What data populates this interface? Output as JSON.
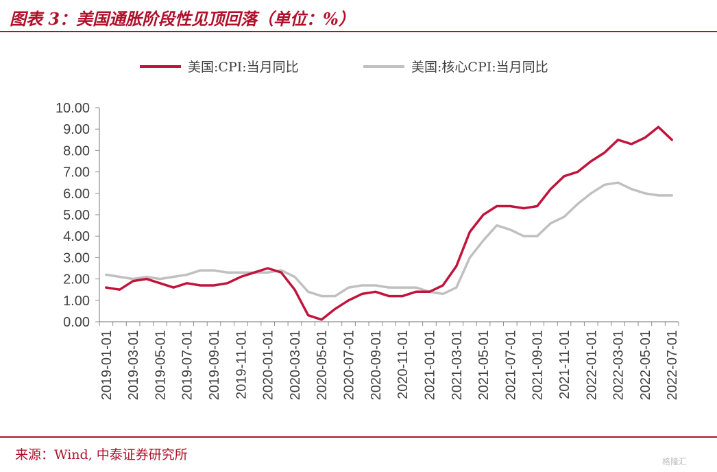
{
  "header": {
    "title": "图表 3：美国通胀阶段性见顶回落（单位：%）"
  },
  "footer": {
    "source": "来源：Wind, 中泰证券研究所",
    "watermark": "格隆汇"
  },
  "colors": {
    "brand": "#b0102a",
    "cpi": "#c0143c",
    "core": "#c0c0c0"
  },
  "chart_data": {
    "type": "line",
    "ylim": [
      0,
      10
    ],
    "yticks": [
      "0.00",
      "1.00",
      "2.00",
      "3.00",
      "4.00",
      "5.00",
      "6.00",
      "7.00",
      "8.00",
      "9.00",
      "10.00"
    ],
    "x": [
      "2019-01-01",
      "2019-02-01",
      "2019-03-01",
      "2019-04-01",
      "2019-05-01",
      "2019-06-01",
      "2019-07-01",
      "2019-08-01",
      "2019-09-01",
      "2019-10-01",
      "2019-11-01",
      "2019-12-01",
      "2020-01-01",
      "2020-02-01",
      "2020-03-01",
      "2020-04-01",
      "2020-05-01",
      "2020-06-01",
      "2020-07-01",
      "2020-08-01",
      "2020-09-01",
      "2020-10-01",
      "2020-11-01",
      "2020-12-01",
      "2021-01-01",
      "2021-02-01",
      "2021-03-01",
      "2021-04-01",
      "2021-05-01",
      "2021-06-01",
      "2021-07-01",
      "2021-08-01",
      "2021-09-01",
      "2021-10-01",
      "2021-11-01",
      "2021-12-01",
      "2022-01-01",
      "2022-02-01",
      "2022-03-01",
      "2022-04-01",
      "2022-05-01",
      "2022-06-01",
      "2022-07-01"
    ],
    "xtick_labels": [
      "2019-01-01",
      "2019-03-01",
      "2019-05-01",
      "2019-07-01",
      "2019-09-01",
      "2019-11-01",
      "2020-01-01",
      "2020-03-01",
      "2020-05-01",
      "2020-07-01",
      "2020-09-01",
      "2020-11-01",
      "2021-01-01",
      "2021-03-01",
      "2021-05-01",
      "2021-07-01",
      "2021-09-01",
      "2021-11-01",
      "2022-01-01",
      "2022-03-01",
      "2022-05-01",
      "2022-07-01"
    ],
    "legend_position": "top",
    "grid": false,
    "series": [
      {
        "name": "美国:CPI:当月同比",
        "color": "#c0143c",
        "values": [
          1.6,
          1.5,
          1.9,
          2.0,
          1.8,
          1.6,
          1.8,
          1.7,
          1.7,
          1.8,
          2.1,
          2.3,
          2.5,
          2.3,
          1.5,
          0.3,
          0.1,
          0.6,
          1.0,
          1.3,
          1.4,
          1.2,
          1.2,
          1.4,
          1.4,
          1.7,
          2.6,
          4.2,
          5.0,
          5.4,
          5.4,
          5.3,
          5.4,
          6.2,
          6.8,
          7.0,
          7.5,
          7.9,
          8.5,
          8.3,
          8.6,
          9.1,
          8.5
        ]
      },
      {
        "name": "美国:核心CPI:当月同比",
        "color": "#c0c0c0",
        "values": [
          2.2,
          2.1,
          2.0,
          2.1,
          2.0,
          2.1,
          2.2,
          2.4,
          2.4,
          2.3,
          2.3,
          2.3,
          2.3,
          2.4,
          2.1,
          1.4,
          1.2,
          1.2,
          1.6,
          1.7,
          1.7,
          1.6,
          1.6,
          1.6,
          1.4,
          1.3,
          1.6,
          3.0,
          3.8,
          4.5,
          4.3,
          4.0,
          4.0,
          4.6,
          4.9,
          5.5,
          6.0,
          6.4,
          6.5,
          6.2,
          6.0,
          5.9,
          5.9
        ]
      }
    ]
  }
}
